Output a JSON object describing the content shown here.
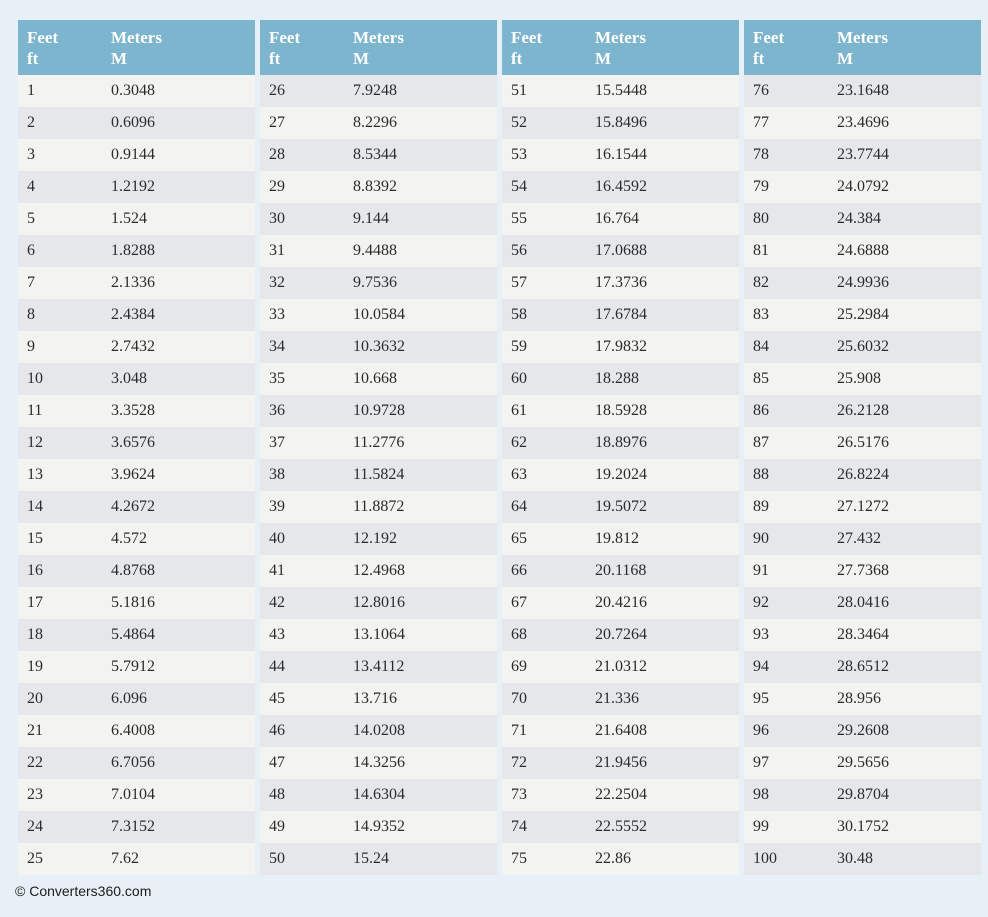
{
  "page": {
    "footer_text": "© Converters360.com"
  },
  "colors": {
    "page_bg": "#e6f0f6",
    "header_bg": "#7cb5cd",
    "header_text": "#ffffff",
    "row_light": "#f3f3f2",
    "row_dark": "#e6e7ea",
    "cell_text": "#2b2b2b",
    "footer_text_color": "#1c1c1c"
  },
  "table_header": {
    "feet_label": "Feet",
    "feet_sub": "ft",
    "meters_label": "Meters",
    "meters_sub": "M"
  },
  "chart_data": {
    "type": "table",
    "title": "Feet to Meters conversion table",
    "columns": [
      "Feet ft",
      "Meters M"
    ],
    "layout": {
      "split_into_tables": 4,
      "rows_per_table": 25,
      "stripe_rule": "rows with even feet values have the darker background"
    },
    "feet": [
      1,
      2,
      3,
      4,
      5,
      6,
      7,
      8,
      9,
      10,
      11,
      12,
      13,
      14,
      15,
      16,
      17,
      18,
      19,
      20,
      21,
      22,
      23,
      24,
      25,
      26,
      27,
      28,
      29,
      30,
      31,
      32,
      33,
      34,
      35,
      36,
      37,
      38,
      39,
      40,
      41,
      42,
      43,
      44,
      45,
      46,
      47,
      48,
      49,
      50,
      51,
      52,
      53,
      54,
      55,
      56,
      57,
      58,
      59,
      60,
      61,
      62,
      63,
      64,
      65,
      66,
      67,
      68,
      69,
      70,
      71,
      72,
      73,
      74,
      75,
      76,
      77,
      78,
      79,
      80,
      81,
      82,
      83,
      84,
      85,
      86,
      87,
      88,
      89,
      90,
      91,
      92,
      93,
      94,
      95,
      96,
      97,
      98,
      99,
      100
    ],
    "meters": [
      "0.3048",
      "0.6096",
      "0.9144",
      "1.2192",
      "1.524",
      "1.8288",
      "2.1336",
      "2.4384",
      "2.7432",
      "3.048",
      "3.3528",
      "3.6576",
      "3.9624",
      "4.2672",
      "4.572",
      "4.8768",
      "5.1816",
      "5.4864",
      "5.7912",
      "6.096",
      "6.4008",
      "6.7056",
      "7.0104",
      "7.3152",
      "7.62",
      "7.9248",
      "8.2296",
      "8.5344",
      "8.8392",
      "9.144",
      "9.4488",
      "9.7536",
      "10.0584",
      "10.3632",
      "10.668",
      "10.9728",
      "11.2776",
      "11.5824",
      "11.8872",
      "12.192",
      "12.4968",
      "12.8016",
      "13.1064",
      "13.4112",
      "13.716",
      "14.0208",
      "14.3256",
      "14.6304",
      "14.9352",
      "15.24",
      "15.5448",
      "15.8496",
      "16.1544",
      "16.4592",
      "16.764",
      "17.0688",
      "17.3736",
      "17.6784",
      "17.9832",
      "18.288",
      "18.5928",
      "18.8976",
      "19.2024",
      "19.5072",
      "19.812",
      "20.1168",
      "20.4216",
      "20.7264",
      "21.0312",
      "21.336",
      "21.6408",
      "21.9456",
      "22.2504",
      "22.5552",
      "22.86",
      "23.1648",
      "23.4696",
      "23.7744",
      "24.0792",
      "24.384",
      "24.6888",
      "24.9936",
      "25.2984",
      "25.6032",
      "25.908",
      "26.2128",
      "26.5176",
      "26.8224",
      "27.1272",
      "27.432",
      "27.7368",
      "28.0416",
      "28.3464",
      "28.6512",
      "28.956",
      "29.2608",
      "29.5656",
      "29.8704",
      "30.1752",
      "30.48"
    ]
  }
}
